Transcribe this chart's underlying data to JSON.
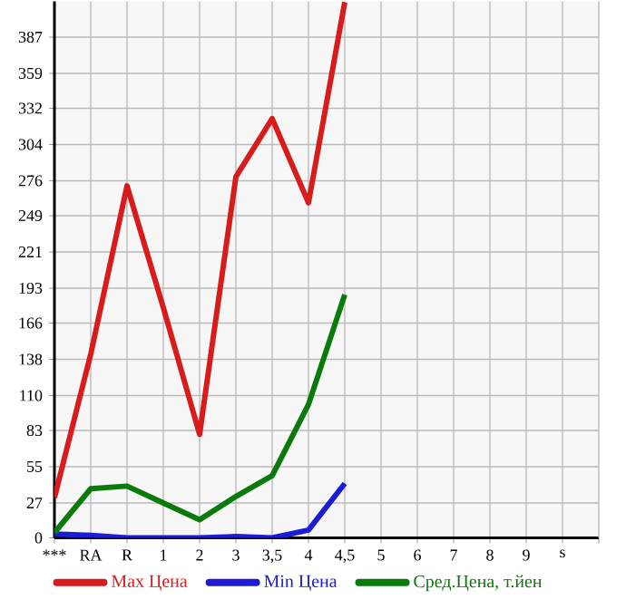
{
  "chart_data": {
    "type": "line",
    "categories": [
      "***",
      "RA",
      "R",
      "1",
      "2",
      "3",
      "3,5",
      "4",
      "4,5",
      "5",
      "6",
      "7",
      "8",
      "9",
      "s"
    ],
    "series": [
      {
        "name": "Max Цена",
        "color": "#d81c1c",
        "values": [
          31,
          142,
          272,
          178,
          80,
          279,
          324,
          259,
          414,
          null,
          null,
          null,
          null,
          null,
          null
        ]
      },
      {
        "name": "Min Цена",
        "color": "#1c1cd8",
        "values": [
          3,
          2,
          0,
          0,
          0,
          1,
          0,
          6,
          42,
          null,
          null,
          null,
          null,
          null,
          null
        ]
      },
      {
        "name": "Сред.Цена, т.йен",
        "color": "#0a7a0a",
        "values": [
          4,
          38,
          40,
          27,
          14,
          32,
          48,
          103,
          188,
          null,
          null,
          null,
          null,
          null,
          null
        ]
      }
    ],
    "ylim": [
      0,
      414.64
    ],
    "yticks": [
      0,
      27,
      55,
      83,
      110,
      138,
      166,
      193,
      221,
      249,
      276,
      304,
      332,
      359,
      387
    ],
    "grid": true,
    "legend": "bottom",
    "marker": "none",
    "line_style": "solid"
  }
}
